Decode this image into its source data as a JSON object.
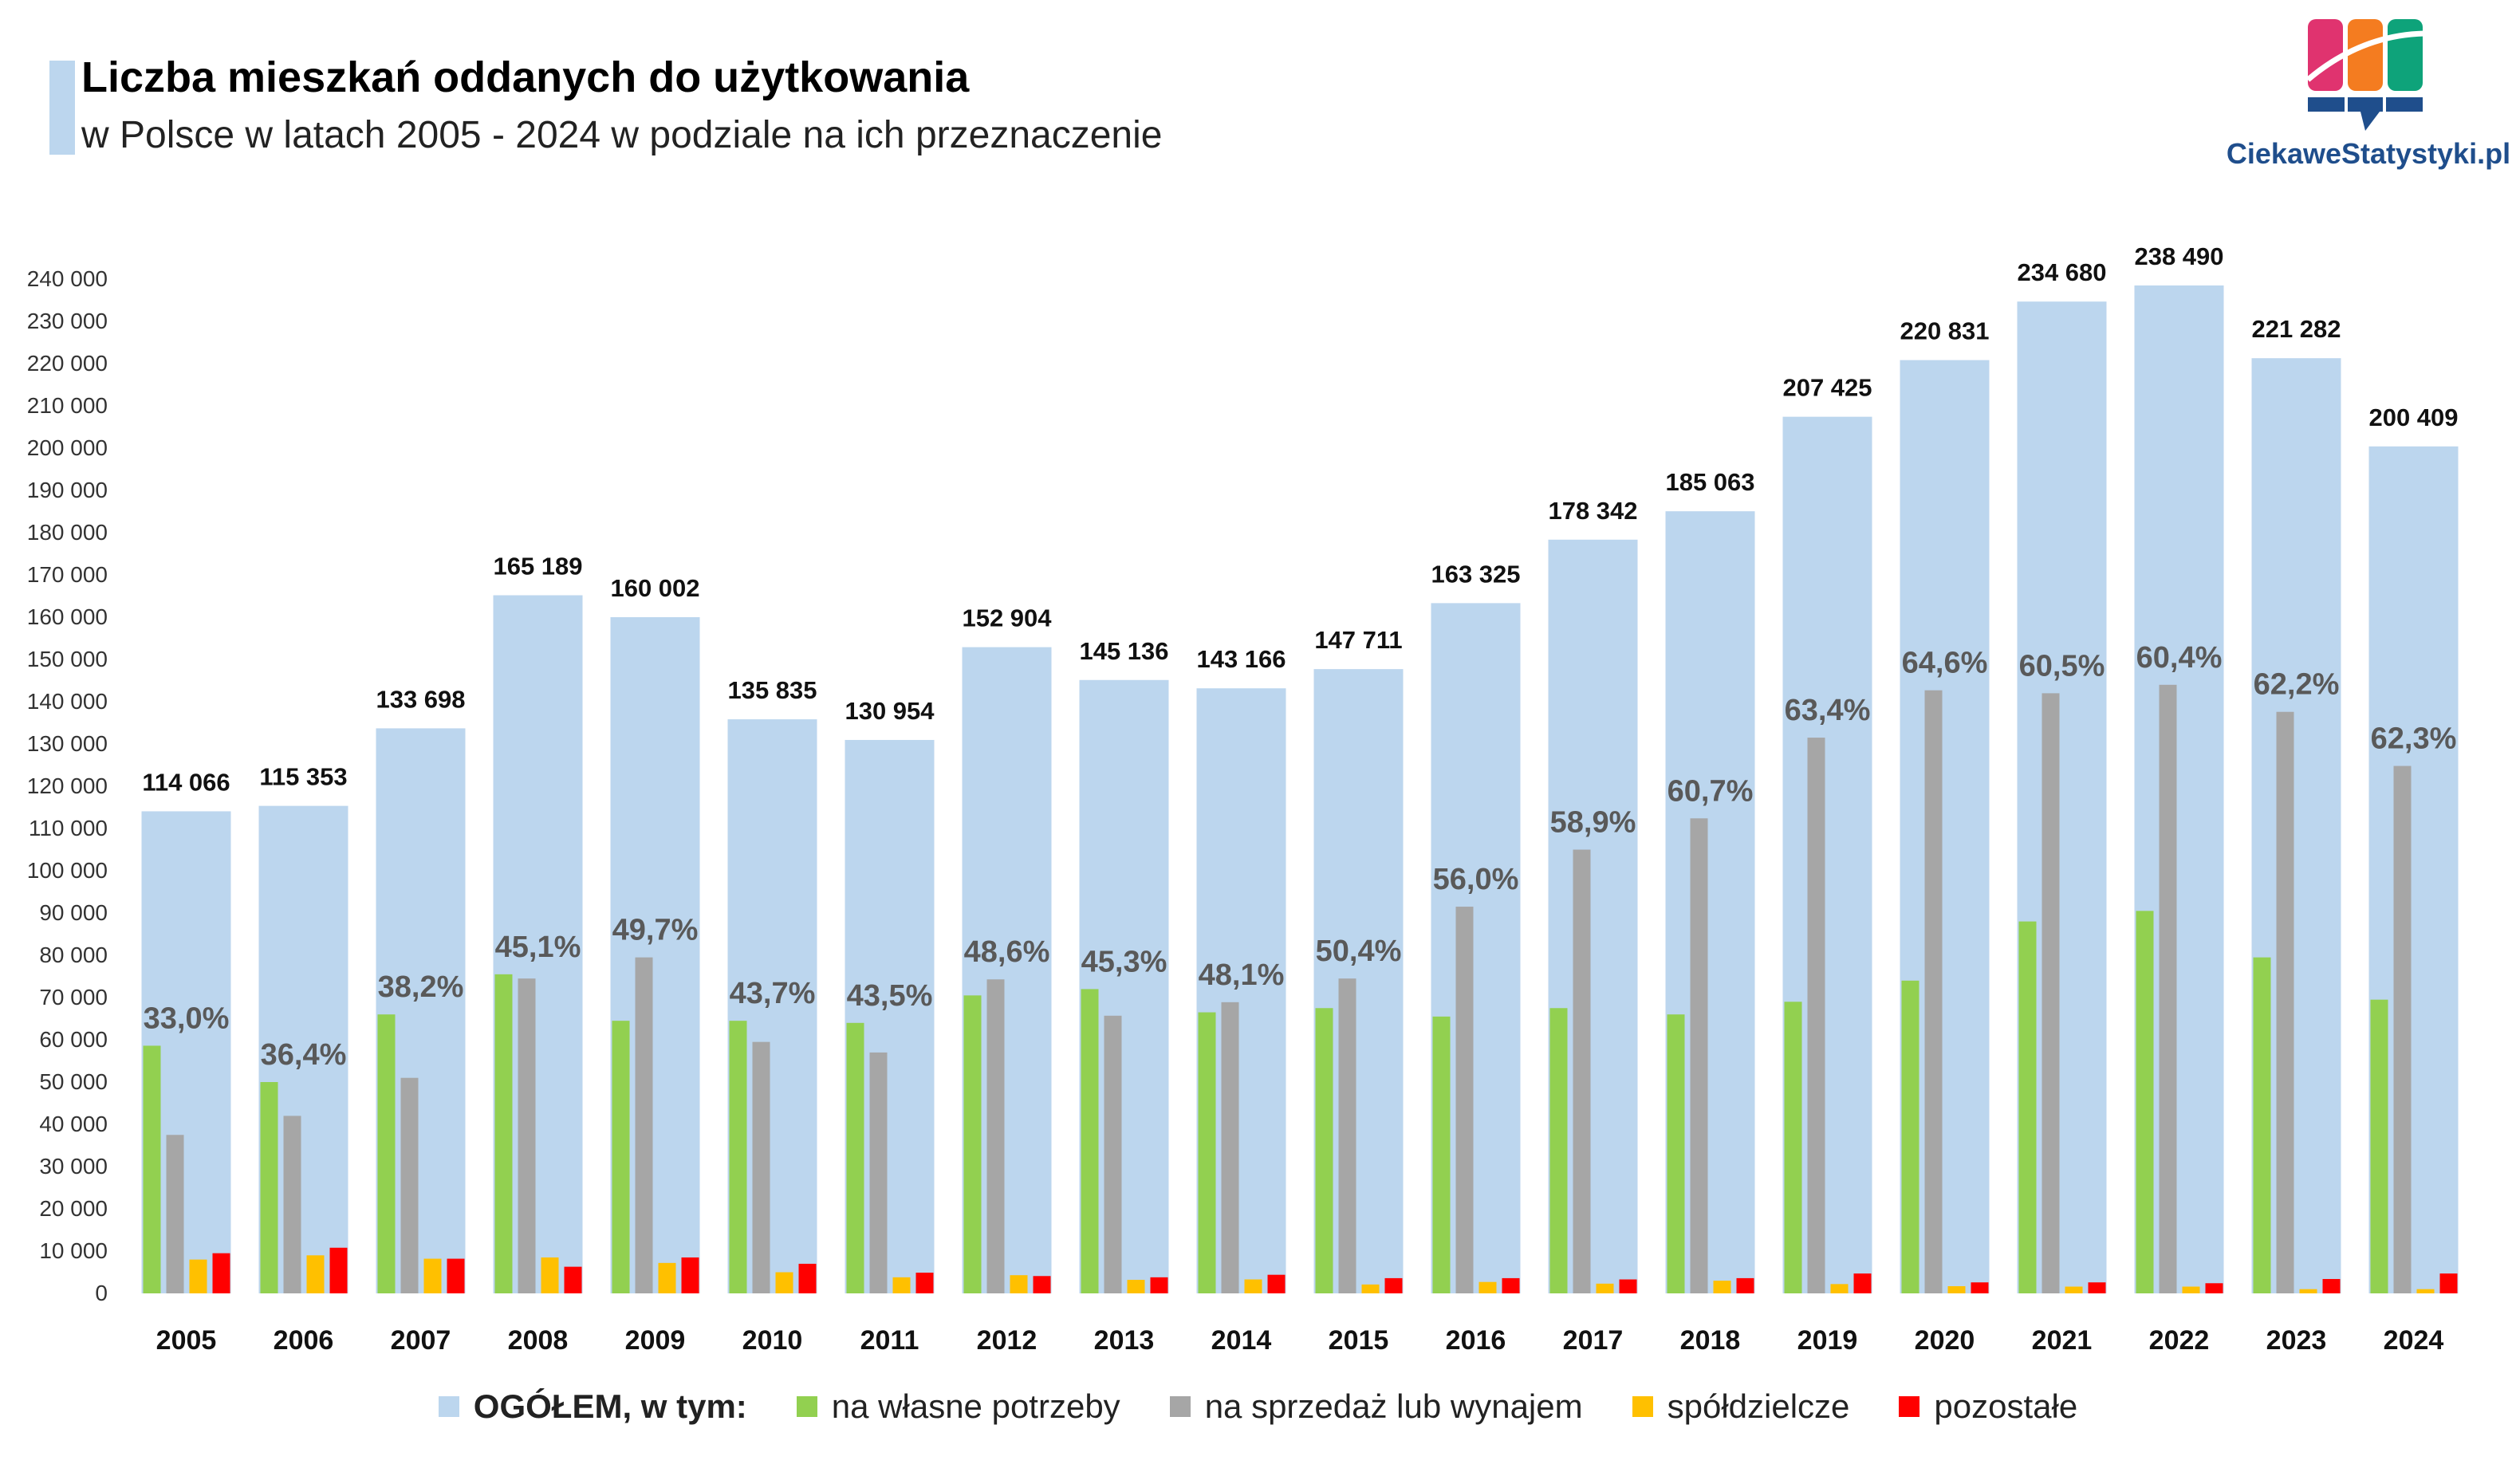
{
  "header": {
    "title": "Liczba mieszkań oddanych do użytkowania",
    "subtitle": "w Polsce w latach 2005 - 2024 w podziale na ich przeznaczenie",
    "logo_text": "CiekaweStatystyki.pl"
  },
  "colors": {
    "total": "#bcd6ee",
    "own": "#92d050",
    "sale": "#a6a6a6",
    "coop": "#ffc000",
    "other": "#ff0000",
    "pct_text": "#595959",
    "logo_blue": "#1f4e8c",
    "logo_pink": "#e0336f",
    "logo_orange": "#f47c20",
    "logo_teal": "#0ea37a"
  },
  "legend": {
    "total": "OGÓŁEM, w tym:",
    "own": "na własne potrzeby",
    "sale": "na sprzedaż lub wynajem",
    "coop": "spółdzielcze",
    "other": "pozostałe"
  },
  "chart_data": {
    "type": "bar",
    "title": "Liczba mieszkań oddanych do użytkowania",
    "subtitle": "w Polsce w latach 2005 - 2024 w podziale na ich przeznaczenie",
    "xlabel": "",
    "ylabel": "",
    "ylim": [
      0,
      240000
    ],
    "y_tick_step": 10000,
    "y_tick_labels": [
      "0",
      "10 000",
      "20 000",
      "30 000",
      "40 000",
      "50 000",
      "60 000",
      "70 000",
      "80 000",
      "90 000",
      "100 000",
      "110 000",
      "120 000",
      "130 000",
      "140 000",
      "150 000",
      "160 000",
      "170 000",
      "180 000",
      "190 000",
      "200 000",
      "210 000",
      "220 000",
      "230 000",
      "240 000"
    ],
    "grid": false,
    "legend_position": "bottom",
    "categories": [
      "2005",
      "2006",
      "2007",
      "2008",
      "2009",
      "2010",
      "2011",
      "2012",
      "2013",
      "2014",
      "2015",
      "2016",
      "2017",
      "2018",
      "2019",
      "2020",
      "2021",
      "2022",
      "2023",
      "2024"
    ],
    "total_labels": [
      "114 066",
      "115 353",
      "133 698",
      "165 189",
      "160 002",
      "135 835",
      "130 954",
      "152 904",
      "145 136",
      "143 166",
      "147 711",
      "163 325",
      "178 342",
      "185 063",
      "207 425",
      "220 831",
      "234 680",
      "238 490",
      "221 282",
      "200 409"
    ],
    "share_labels": [
      "33,0%",
      "36,4%",
      "38,2%",
      "45,1%",
      "49,7%",
      "43,7%",
      "43,5%",
      "48,6%",
      "45,3%",
      "48,1%",
      "50,4%",
      "56,0%",
      "58,9%",
      "60,7%",
      "63,4%",
      "64,6%",
      "60,5%",
      "60,4%",
      "62,2%",
      "62,3%"
    ],
    "series": [
      {
        "name": "OGÓŁEM, w tym:",
        "key": "total",
        "values": [
          114066,
          115353,
          133698,
          165189,
          160002,
          135835,
          130954,
          152904,
          145136,
          143166,
          147711,
          163325,
          178342,
          185063,
          207425,
          220831,
          234680,
          238490,
          221282,
          200409
        ]
      },
      {
        "name": "na własne potrzeby",
        "key": "own",
        "values": [
          58600,
          50000,
          66000,
          75500,
          64500,
          64500,
          64000,
          70500,
          72000,
          66500,
          67500,
          65500,
          67500,
          66000,
          69000,
          74000,
          88000,
          90500,
          79500,
          69500
        ]
      },
      {
        "name": "na sprzedaż lub wynajem",
        "key": "sale",
        "values": [
          37500,
          42000,
          51000,
          74500,
          79500,
          59500,
          57000,
          74300,
          65700,
          68900,
          74500,
          91500,
          105000,
          112400,
          131500,
          142700,
          142000,
          144000,
          137600,
          124800
        ]
      },
      {
        "name": "spółdzielcze",
        "key": "coop",
        "values": [
          8000,
          9000,
          8200,
          8500,
          7200,
          5000,
          3800,
          4300,
          3200,
          3300,
          2100,
          2700,
          2300,
          3000,
          2200,
          1700,
          1600,
          1600,
          1000,
          1000
        ]
      },
      {
        "name": "pozostałe",
        "key": "other",
        "values": [
          9500,
          10800,
          8200,
          6300,
          8500,
          7000,
          4900,
          4100,
          3800,
          4400,
          3600,
          3600,
          3300,
          3600,
          4700,
          2600,
          2600,
          2400,
          3400,
          4700
        ]
      }
    ]
  }
}
